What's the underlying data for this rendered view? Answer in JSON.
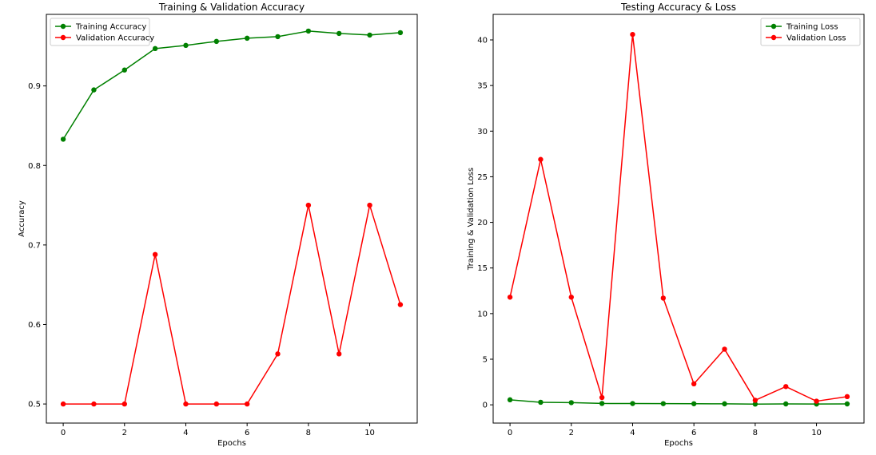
{
  "chart_data": [
    {
      "type": "line",
      "title": "Training & Validation Accuracy",
      "xlabel": "Epochs",
      "ylabel": "Accuracy",
      "xlim": [
        -0.55,
        11.55
      ],
      "ylim": [
        0.476,
        0.99
      ],
      "xticks": [
        0,
        2,
        4,
        6,
        8,
        10
      ],
      "yticks": [
        0.5,
        0.6,
        0.7,
        0.8,
        0.9
      ],
      "grid": false,
      "legend": "upper-left",
      "x": [
        0,
        1,
        2,
        3,
        4,
        5,
        6,
        7,
        8,
        9,
        10,
        11
      ],
      "series": [
        {
          "name": "Training Accuracy",
          "color": "#008000",
          "values": [
            0.833,
            0.895,
            0.92,
            0.947,
            0.951,
            0.956,
            0.96,
            0.962,
            0.969,
            0.966,
            0.964,
            0.967
          ]
        },
        {
          "name": "Validation Accuracy",
          "color": "#ff0000",
          "values": [
            0.5,
            0.5,
            0.5,
            0.688,
            0.5,
            0.5,
            0.5,
            0.563,
            0.75,
            0.563,
            0.75,
            0.625
          ]
        }
      ]
    },
    {
      "type": "line",
      "title": "Testing Accuracy & Loss",
      "xlabel": "Epochs",
      "ylabel": "Training & Validation Loss",
      "xlim": [
        -0.55,
        11.55
      ],
      "ylim": [
        -2.0,
        42.8
      ],
      "xticks": [
        0,
        2,
        4,
        6,
        8,
        10
      ],
      "yticks": [
        0,
        5,
        10,
        15,
        20,
        25,
        30,
        35,
        40
      ],
      "grid": false,
      "legend": "upper-right",
      "x": [
        0,
        1,
        2,
        3,
        4,
        5,
        6,
        7,
        8,
        9,
        10,
        11
      ],
      "series": [
        {
          "name": "Training Loss",
          "color": "#008000",
          "values": [
            0.55,
            0.28,
            0.24,
            0.15,
            0.14,
            0.13,
            0.12,
            0.11,
            0.08,
            0.1,
            0.09,
            0.1
          ]
        },
        {
          "name": "Validation Loss",
          "color": "#ff0000",
          "values": [
            11.8,
            26.9,
            11.8,
            0.8,
            40.6,
            11.7,
            2.3,
            6.1,
            0.5,
            2.0,
            0.4,
            0.9
          ]
        }
      ]
    }
  ]
}
